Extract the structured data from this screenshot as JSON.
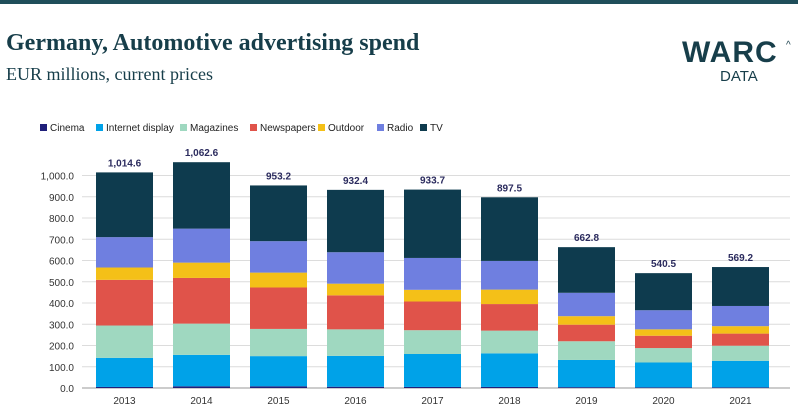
{
  "title": "Germany, Automotive advertising spend",
  "subtitle": "EUR millions, current prices",
  "logo": {
    "main": "WARC",
    "mark": "^",
    "sub": "DATA"
  },
  "colors": {
    "Cinema": "#1f1f7a",
    "Internet display": "#00a2e8",
    "Magazines": "#9fd8c0",
    "Newspapers": "#e0534a",
    "Outdoor": "#f4c018",
    "Radio": "#6f7fe0",
    "TV": "#0e3b4e"
  },
  "chart_data": {
    "type": "bar",
    "stacked": true,
    "categories": [
      "2013",
      "2014",
      "2015",
      "2016",
      "2017",
      "2018",
      "2019",
      "2020",
      "2021"
    ],
    "series": [
      {
        "name": "Cinema",
        "values": [
          5,
          8,
          8,
          6,
          5,
          5,
          4,
          3,
          3
        ]
      },
      {
        "name": "Internet display",
        "values": [
          137,
          148,
          142,
          145,
          155,
          158,
          128,
          117,
          125
        ]
      },
      {
        "name": "Magazines",
        "values": [
          152,
          147,
          128,
          125,
          112,
          107,
          88,
          68,
          71
        ]
      },
      {
        "name": "Newspapers",
        "values": [
          215,
          215,
          195,
          160,
          135,
          125,
          78,
          58,
          57
        ]
      },
      {
        "name": "Outdoor",
        "values": [
          58,
          72,
          70,
          55,
          55,
          68,
          40,
          30,
          35
        ]
      },
      {
        "name": "Radio",
        "values": [
          143,
          160,
          148,
          148,
          150,
          135,
          110,
          90,
          95
        ]
      },
      {
        "name": "TV",
        "values": [
          304.6,
          312.6,
          262.2,
          293.4,
          321.7,
          299.5,
          214.8,
          174.5,
          183.2
        ]
      }
    ],
    "totals": [
      "1,014.6",
      "1,062.6",
      "953.2",
      "932.4",
      "933.7",
      "897.5",
      "662.8",
      "540.5",
      "569.2"
    ],
    "ylim": [
      0,
      1050
    ],
    "yticks": [
      "0.0",
      "100.0",
      "200.0",
      "300.0",
      "400.0",
      "500.0",
      "600.0",
      "700.0",
      "800.0",
      "900.0",
      "1,000.0"
    ],
    "legend_position": "top-left",
    "grid": true
  }
}
